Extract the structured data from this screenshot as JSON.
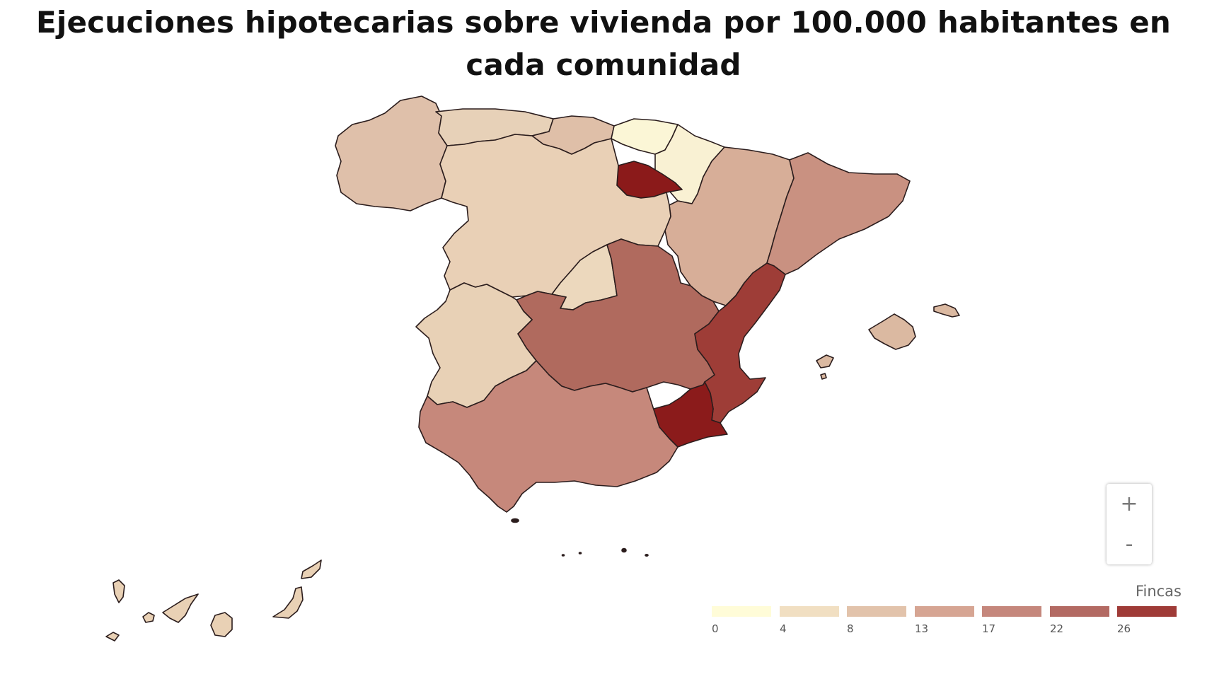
{
  "title": "Ejecuciones hipotecarias sobre vivienda por 100.000 habitantes en cada comunidad",
  "legend": {
    "title": "Fincas",
    "ticks": [
      "0",
      "4",
      "8",
      "13",
      "17",
      "22",
      "26"
    ],
    "colors": [
      "#fffcd8",
      "#f1dfc2",
      "#e2c3ab",
      "#d6a593",
      "#c5877c",
      "#b36a63",
      "#9f3b37"
    ]
  },
  "zoom": {
    "in_label": "+",
    "out_label": "-"
  },
  "regions": [
    {
      "name": "Galicia",
      "color": "#dfc0aa"
    },
    {
      "name": "Asturias",
      "color": "#e7d1b8"
    },
    {
      "name": "Cantabria",
      "color": "#dfbfa8"
    },
    {
      "name": "País Vasco",
      "color": "#fbf6d6"
    },
    {
      "name": "Navarra",
      "color": "#f9f1d3"
    },
    {
      "name": "La Rioja",
      "color": "#8b1a1a"
    },
    {
      "name": "Aragón",
      "color": "#d7ae98"
    },
    {
      "name": "Cataluña",
      "color": "#c99181"
    },
    {
      "name": "Castilla y León",
      "color": "#e9d0b6"
    },
    {
      "name": "Comunidad de Madrid",
      "color": "#ecd8bd"
    },
    {
      "name": "Castilla-La Mancha",
      "color": "#b06a5e"
    },
    {
      "name": "Comunitat Valenciana",
      "color": "#9e3d37"
    },
    {
      "name": "Región de Murcia",
      "color": "#8b1b1b"
    },
    {
      "name": "Extremadura",
      "color": "#e8d1b6"
    },
    {
      "name": "Andalucía",
      "color": "#c6887b"
    },
    {
      "name": "Illes Balears",
      "color": "#dbb9a1"
    },
    {
      "name": "Canarias",
      "color": "#e9d1b5"
    },
    {
      "name": "Ceuta y Melilla",
      "color": "#2b1d1d"
    }
  ]
}
